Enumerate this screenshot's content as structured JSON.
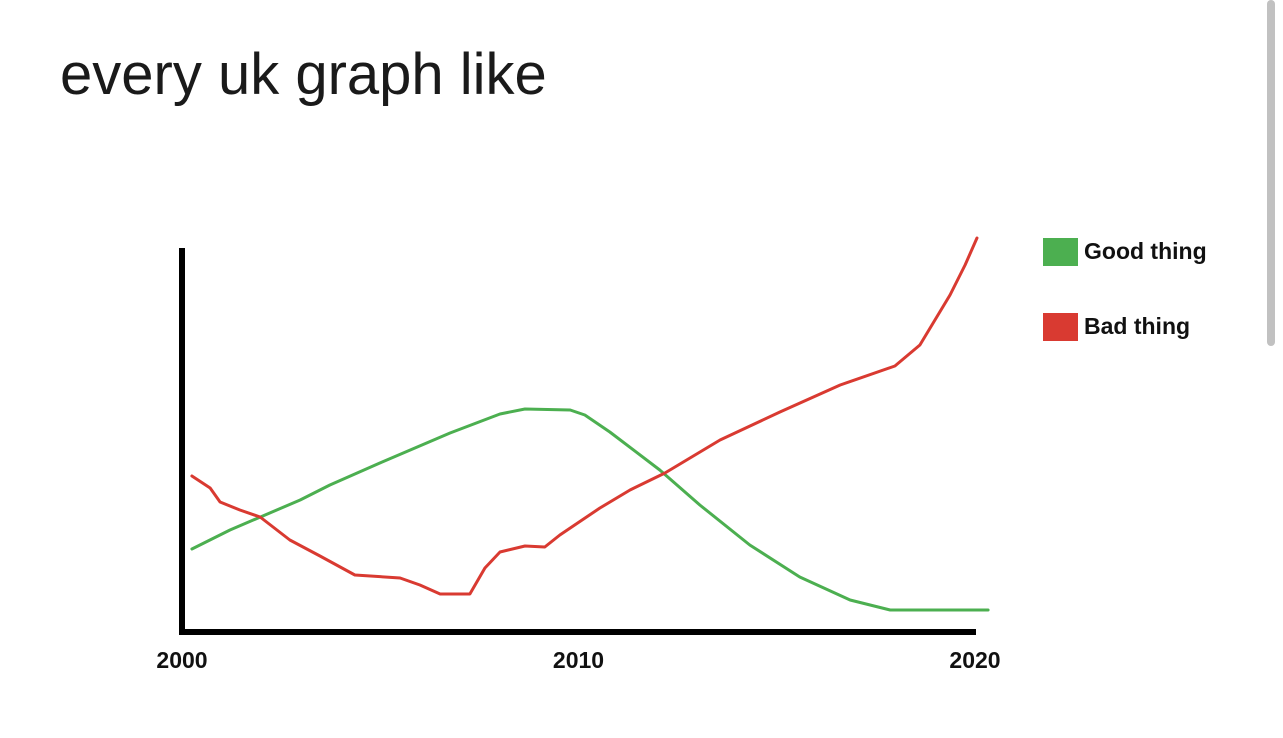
{
  "chart_data": {
    "type": "line",
    "title": "every uk graph like",
    "xlim": [
      2000,
      2020
    ],
    "xticks": [
      2000,
      2010,
      2020
    ],
    "ylim": [
      0,
      100
    ],
    "series": [
      {
        "name": "Good thing",
        "color": "#4caf50",
        "x": [
          2000.25,
          2001.21,
          2002.98,
          2003.73,
          2004.99,
          2006.76,
          2008.02,
          2008.65,
          2009.79,
          2010.16,
          2010.79,
          2012.05,
          2013.06,
          2014.32,
          2015.58,
          2016.85,
          2017.86,
          2020.33
        ],
        "values": [
          20.75,
          25.5,
          33,
          36.75,
          42.25,
          49.75,
          54.5,
          55.75,
          55.5,
          54.25,
          50,
          40.5,
          31.75,
          21.75,
          13.75,
          8,
          5.5,
          5.5
        ]
      },
      {
        "name": "Bad thing",
        "color": "#d93a31",
        "x": [
          2000.25,
          2000.71,
          2000.96,
          2001.46,
          2001.97,
          2002.72,
          2003.48,
          2004.36,
          2005.5,
          2006.0,
          2006.51,
          2007.26,
          2007.64,
          2008.02,
          2008.65,
          2009.15,
          2009.53,
          2010.54,
          2011.3,
          2012.18,
          2013.57,
          2015.08,
          2016.6,
          2017.98,
          2018.61,
          2019.37,
          2019.75,
          2020.05
        ],
        "values": [
          39,
          36,
          32.5,
          30.5,
          28.75,
          23,
          19,
          14.25,
          13.5,
          11.75,
          9.5,
          9.5,
          16,
          20,
          21.5,
          21.25,
          24.25,
          31,
          35.5,
          39.75,
          48,
          55,
          61.75,
          66.5,
          71.75,
          84.25,
          91.75,
          98.5
        ]
      }
    ]
  }
}
